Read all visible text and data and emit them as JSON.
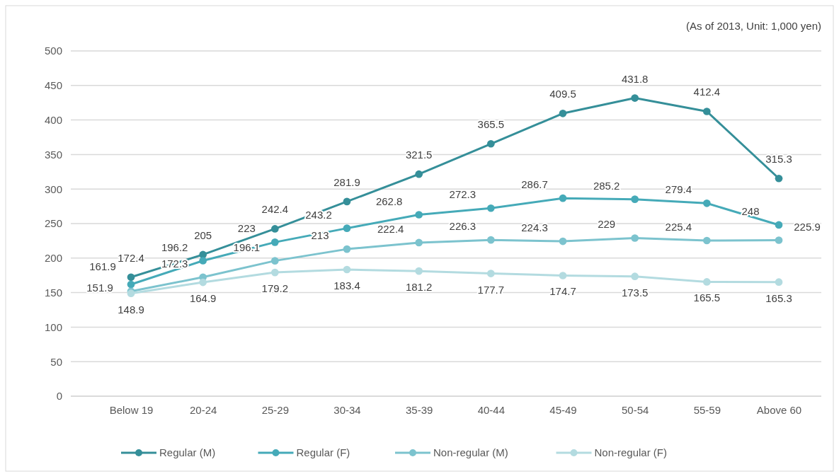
{
  "chart_data": {
    "type": "line",
    "annotations": [
      "(As of 2013, Unit: 1,000 yen)"
    ],
    "categories": [
      "Below 19",
      "20-24",
      "25-29",
      "30-34",
      "35-39",
      "40-44",
      "45-49",
      "50-54",
      "55-59",
      "Above 60"
    ],
    "series": [
      {
        "name": "Regular (M)",
        "color": "#358f99",
        "values": [
          172.4,
          205,
          242.4,
          281.9,
          321.5,
          365.5,
          409.5,
          431.8,
          412.4,
          315.3
        ]
      },
      {
        "name": "Regular (F)",
        "color": "#45aab8",
        "values": [
          161.9,
          196.2,
          223,
          243.2,
          262.8,
          272.3,
          286.7,
          285.2,
          279.4,
          248
        ]
      },
      {
        "name": "Non-regular (M)",
        "color": "#7cc3ce",
        "values": [
          151.9,
          172.3,
          196.1,
          213,
          222.4,
          226.3,
          224.3,
          229,
          225.4,
          225.9
        ]
      },
      {
        "name": "Non-regular (F)",
        "color": "#b3dbe0",
        "values": [
          148.9,
          164.9,
          179.2,
          183.4,
          181.2,
          177.7,
          174.7,
          173.5,
          165.5,
          165.3
        ]
      }
    ],
    "ylim": [
      0,
      500
    ],
    "yticks": [
      0,
      50,
      100,
      150,
      200,
      250,
      300,
      350,
      400,
      450,
      500
    ],
    "grid": "y",
    "legend": "bottom",
    "marker": "circle",
    "line_style": "solid",
    "data_labels": true
  }
}
